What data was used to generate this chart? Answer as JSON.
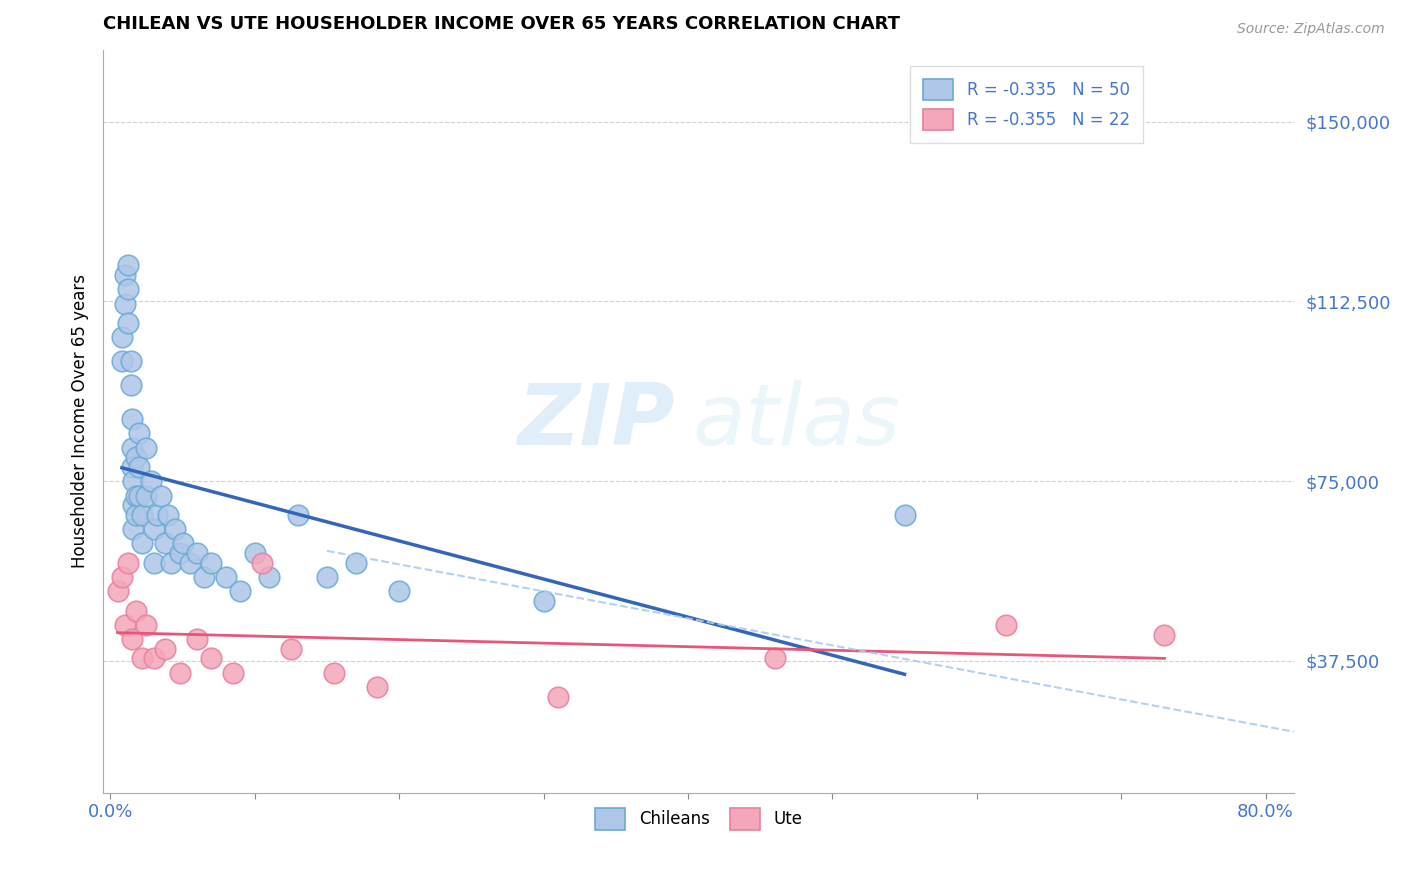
{
  "title": "CHILEAN VS UTE HOUSEHOLDER INCOME OVER 65 YEARS CORRELATION CHART",
  "source": "Source: ZipAtlas.com",
  "ylabel": "Householder Income Over 65 years",
  "xlim": [
    -0.005,
    0.82
  ],
  "ylim": [
    10000,
    165000
  ],
  "yticks": [
    37500,
    75000,
    112500,
    150000
  ],
  "ytick_labels": [
    "$37,500",
    "$75,000",
    "$112,500",
    "$150,000"
  ],
  "xtick_positions": [
    0.0,
    0.1,
    0.2,
    0.3,
    0.4,
    0.5,
    0.6,
    0.7,
    0.8
  ],
  "xtick_labels": [
    "0.0%",
    "",
    "",
    "",
    "",
    "",
    "",
    "",
    "80.0%"
  ],
  "chilean_color": "#aec6e8",
  "chilean_edge": "#6aaad4",
  "ute_color": "#f4a7b9",
  "ute_edge": "#e87fa0",
  "line_chilean_color": "#3366bb",
  "line_ute_color": "#e8557a",
  "line_combined_color": "#aaccee",
  "watermark_zip": "ZIP",
  "watermark_atlas": "atlas",
  "chilean_x": [
    0.008,
    0.008,
    0.01,
    0.01,
    0.012,
    0.012,
    0.012,
    0.014,
    0.014,
    0.015,
    0.015,
    0.015,
    0.016,
    0.016,
    0.016,
    0.018,
    0.018,
    0.018,
    0.02,
    0.02,
    0.02,
    0.022,
    0.022,
    0.025,
    0.025,
    0.028,
    0.03,
    0.03,
    0.032,
    0.035,
    0.038,
    0.04,
    0.042,
    0.045,
    0.048,
    0.05,
    0.055,
    0.06,
    0.065,
    0.07,
    0.08,
    0.09,
    0.1,
    0.11,
    0.13,
    0.15,
    0.17,
    0.2,
    0.3,
    0.55
  ],
  "chilean_y": [
    105000,
    100000,
    118000,
    112000,
    120000,
    115000,
    108000,
    100000,
    95000,
    88000,
    82000,
    78000,
    75000,
    70000,
    65000,
    80000,
    72000,
    68000,
    85000,
    78000,
    72000,
    68000,
    62000,
    82000,
    72000,
    75000,
    65000,
    58000,
    68000,
    72000,
    62000,
    68000,
    58000,
    65000,
    60000,
    62000,
    58000,
    60000,
    55000,
    58000,
    55000,
    52000,
    60000,
    55000,
    68000,
    55000,
    58000,
    52000,
    50000,
    68000
  ],
  "ute_x": [
    0.005,
    0.008,
    0.01,
    0.012,
    0.015,
    0.018,
    0.022,
    0.025,
    0.03,
    0.038,
    0.048,
    0.06,
    0.07,
    0.085,
    0.105,
    0.125,
    0.155,
    0.185,
    0.31,
    0.46,
    0.62,
    0.73
  ],
  "ute_y": [
    52000,
    55000,
    45000,
    58000,
    42000,
    48000,
    38000,
    45000,
    38000,
    40000,
    35000,
    42000,
    38000,
    35000,
    58000,
    40000,
    35000,
    32000,
    30000,
    38000,
    45000,
    43000
  ]
}
